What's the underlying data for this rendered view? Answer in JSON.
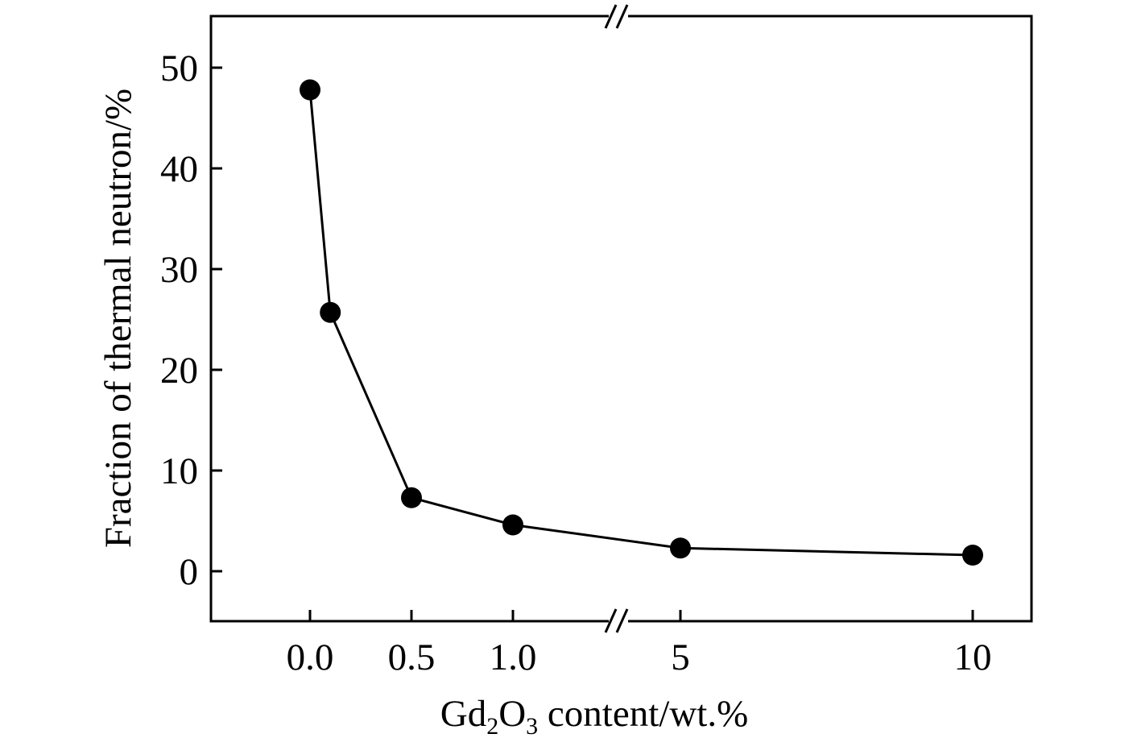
{
  "chart_data": {
    "type": "line",
    "x_categories": [
      "0.0",
      "0.5",
      "1.0",
      "5",
      "10"
    ],
    "x_values": [
      0,
      0.1,
      0.5,
      1.0,
      5,
      10
    ],
    "y_values": [
      47.8,
      25.7,
      7.3,
      4.6,
      2.3,
      1.6
    ],
    "x_axis_break": "between 1.0 and 5",
    "xlabel": {
      "prefix": "Gd",
      "sub1": "2",
      "mid": "O",
      "sub2": "3",
      "suffix": " content/wt.%"
    },
    "ylabel": "Fraction of thermal neutron/%",
    "yticks": [
      0,
      10,
      20,
      30,
      40,
      50
    ],
    "ylim": [
      -5,
      55
    ],
    "marker": "filled-circle",
    "color": "#000000"
  }
}
